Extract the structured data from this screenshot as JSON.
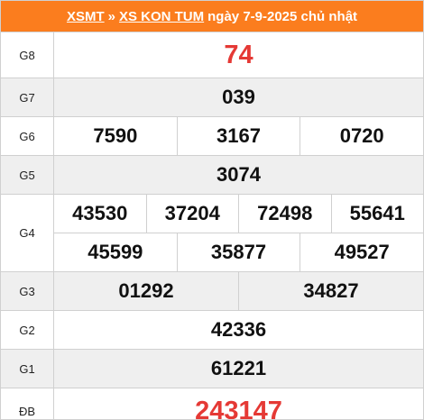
{
  "header": {
    "link1": "XSMT",
    "separator": "»",
    "link2": "XS KON TUM",
    "date": "ngày 7-9-2025 chủ nhật"
  },
  "rows": [
    {
      "label": "G8",
      "numbers": [
        [
          "74"
        ]
      ],
      "color": "#e53935"
    },
    {
      "label": "G7",
      "numbers": [
        [
          "039"
        ]
      ]
    },
    {
      "label": "G6",
      "numbers": [
        [
          "7590",
          "3167",
          "0720"
        ]
      ]
    },
    {
      "label": "G5",
      "numbers": [
        [
          "3074"
        ]
      ]
    },
    {
      "label": "G4",
      "numbers": [
        [
          "43530",
          "37204",
          "72498",
          "55641"
        ],
        [
          "45599",
          "35877",
          "49527"
        ]
      ]
    },
    {
      "label": "G3",
      "numbers": [
        [
          "01292",
          "34827"
        ]
      ]
    },
    {
      "label": "G2",
      "numbers": [
        [
          "42336"
        ]
      ]
    },
    {
      "label": "G1",
      "numbers": [
        [
          "61221"
        ]
      ]
    },
    {
      "label": "ĐB",
      "numbers": [
        [
          "243147"
        ]
      ],
      "color": "#e53935"
    }
  ]
}
